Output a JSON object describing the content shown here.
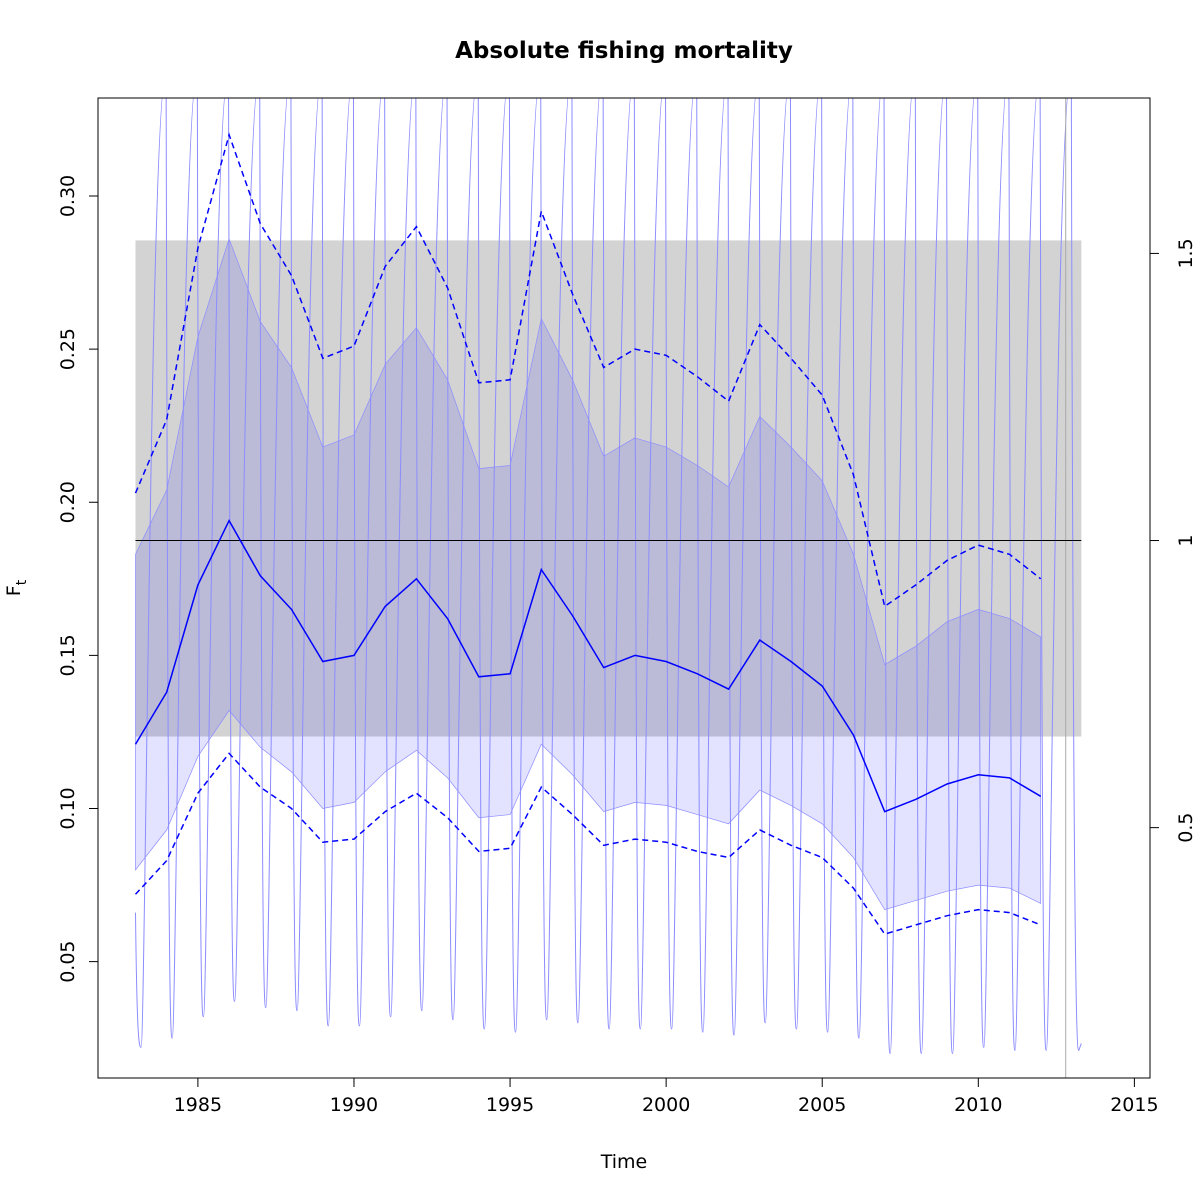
{
  "chart_data": {
    "type": "line",
    "title": "Absolute fishing mortality",
    "xlabel": "Time",
    "ylabel_main": "F",
    "ylabel_sub": "t",
    "xlim": [
      1981.8,
      2015.5
    ],
    "ylim": [
      0.012,
      0.332
    ],
    "right_axis_scale": 0.1875,
    "x_ticks": [
      1985,
      1990,
      1995,
      2000,
      2005,
      2010,
      2015
    ],
    "y_ticks": [
      0.05,
      0.1,
      0.15,
      0.2,
      0.25,
      0.3
    ],
    "y_tick_labels": [
      "0.05",
      "0.10",
      "0.15",
      "0.20",
      "0.25",
      "0.30"
    ],
    "right_ticks": [
      0.5,
      1,
      1.5
    ],
    "right_tick_labels": [
      "0.5",
      "1",
      "1.5"
    ],
    "reference_line": 0.1875,
    "reference_band": {
      "x": [
        1983,
        2013.3
      ],
      "y": [
        0.1235,
        0.2855
      ],
      "color": "#d3d3d3"
    },
    "years": [
      1983,
      1984,
      1985,
      1986,
      1987,
      1988,
      1989,
      1990,
      1991,
      1992,
      1993,
      1994,
      1995,
      1996,
      1997,
      1998,
      1999,
      2000,
      2001,
      2002,
      2003,
      2004,
      2005,
      2006,
      2007,
      2008,
      2009,
      2010,
      2011,
      2012
    ],
    "series": [
      {
        "name": "F",
        "style": "solid",
        "color": "#0000ff",
        "values": [
          0.121,
          0.138,
          0.173,
          0.194,
          0.176,
          0.165,
          0.148,
          0.15,
          0.166,
          0.175,
          0.162,
          0.143,
          0.144,
          0.178,
          0.163,
          0.146,
          0.15,
          0.148,
          0.144,
          0.139,
          0.155,
          0.148,
          0.14,
          0.124,
          0.099,
          0.103,
          0.108,
          0.111,
          0.11,
          0.104
        ]
      },
      {
        "name": "upper_95",
        "style": "dashed",
        "color": "#0000ff",
        "values": [
          0.203,
          0.227,
          0.283,
          0.32,
          0.291,
          0.274,
          0.247,
          0.251,
          0.277,
          0.29,
          0.27,
          0.239,
          0.24,
          0.295,
          0.268,
          0.244,
          0.25,
          0.248,
          0.241,
          0.233,
          0.258,
          0.247,
          0.235,
          0.209,
          0.166,
          0.173,
          0.181,
          0.186,
          0.183,
          0.175
        ]
      },
      {
        "name": "lower_95",
        "style": "dashed",
        "color": "#0000ff",
        "values": [
          0.072,
          0.083,
          0.105,
          0.118,
          0.107,
          0.1,
          0.089,
          0.09,
          0.099,
          0.105,
          0.097,
          0.086,
          0.087,
          0.107,
          0.098,
          0.088,
          0.09,
          0.089,
          0.086,
          0.084,
          0.093,
          0.088,
          0.084,
          0.074,
          0.059,
          0.062,
          0.065,
          0.067,
          0.066,
          0.062
        ]
      }
    ],
    "band_upper": [
      0.183,
      0.204,
      0.254,
      0.286,
      0.259,
      0.244,
      0.218,
      0.222,
      0.245,
      0.257,
      0.24,
      0.211,
      0.212,
      0.26,
      0.24,
      0.215,
      0.221,
      0.218,
      0.212,
      0.205,
      0.228,
      0.218,
      0.207,
      0.183,
      0.147,
      0.153,
      0.161,
      0.165,
      0.162,
      0.156
    ],
    "band_lower": [
      0.08,
      0.093,
      0.117,
      0.132,
      0.12,
      0.112,
      0.1,
      0.102,
      0.112,
      0.119,
      0.11,
      0.097,
      0.098,
      0.121,
      0.111,
      0.099,
      0.102,
      0.101,
      0.098,
      0.095,
      0.106,
      0.101,
      0.095,
      0.084,
      0.067,
      0.07,
      0.073,
      0.075,
      0.074,
      0.069
    ],
    "oscillation": {
      "peaks_top": 0.34,
      "troughs": [
        0.022,
        0.025,
        0.032,
        0.037,
        0.035,
        0.034,
        0.029,
        0.029,
        0.032,
        0.034,
        0.031,
        0.028,
        0.027,
        0.031,
        0.03,
        0.028,
        0.028,
        0.028,
        0.027,
        0.026,
        0.03,
        0.028,
        0.027,
        0.025,
        0.02,
        0.02,
        0.02,
        0.022,
        0.021,
        0.021,
        0.021
      ]
    },
    "colors": {
      "band": "#d3d3d3",
      "ci_fill": "#e3e3ff",
      "ci_overlap": "#bdbddd",
      "line": "#0000ff",
      "osc": "#8c8cff",
      "ref": "#000000",
      "axis": "#000000"
    }
  }
}
